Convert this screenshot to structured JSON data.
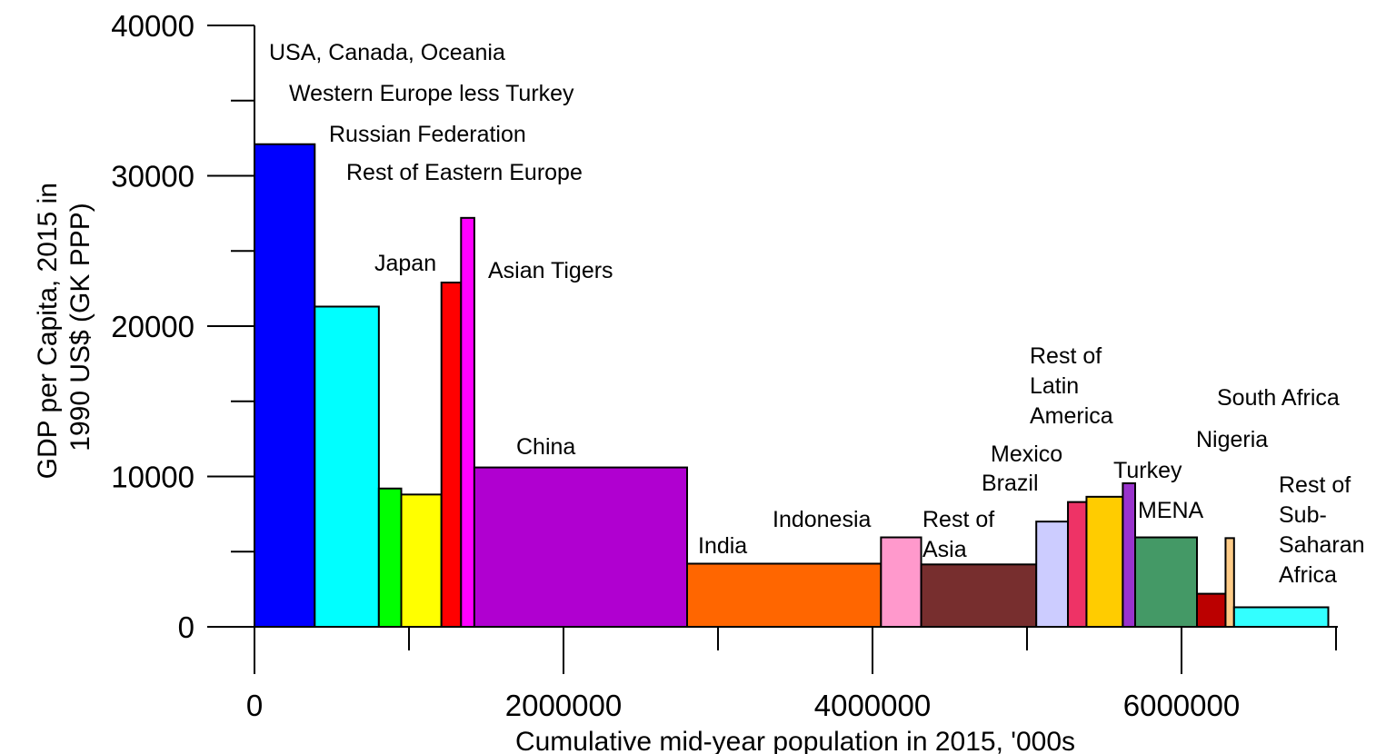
{
  "chart_data": {
    "type": "bar",
    "subtype": "variable-width",
    "xlabel": "Cumulative mid-year population in 2015, '000s",
    "ylabel_lines": [
      "GDP per Capita, 2015 in",
      "1990 US$ (GK PPP)"
    ],
    "xlim": [
      0,
      7000000
    ],
    "ylim": [
      0,
      40000
    ],
    "x_ticks": [
      0,
      2000000,
      4000000,
      6000000
    ],
    "x_tick_labels": [
      "0",
      "2000000",
      "4000000",
      "6000000"
    ],
    "x_minor_ticks": [
      1000000,
      3000000,
      5000000,
      7000000
    ],
    "y_ticks": [
      0,
      10000,
      20000,
      30000,
      40000
    ],
    "y_tick_labels": [
      "0",
      "10000",
      "20000",
      "30000",
      "40000"
    ],
    "y_minor_ticks": [
      5000,
      15000,
      25000,
      35000
    ],
    "grid": false,
    "series": [
      {
        "label": "USA, Canada, Oceania",
        "x_start": 0,
        "x_end": 390000,
        "value": 32100,
        "color": "#0000ff"
      },
      {
        "label": "Western Europe less Turkey",
        "x_start": 390000,
        "x_end": 805000,
        "value": 21300,
        "color": "#00ffff"
      },
      {
        "label": "Russian Federation",
        "x_start": 805000,
        "x_end": 950000,
        "value": 9200,
        "color": "#00ff00"
      },
      {
        "label": "Rest of Eastern Europe",
        "x_start": 950000,
        "x_end": 1210000,
        "value": 8800,
        "color": "#ffff00"
      },
      {
        "label": "Japan",
        "x_start": 1210000,
        "x_end": 1337000,
        "value": 22900,
        "color": "#ff0000"
      },
      {
        "label": "Asian Tigers",
        "x_start": 1337000,
        "x_end": 1423000,
        "value": 27200,
        "color": "#ff00ff"
      },
      {
        "label": "China",
        "x_start": 1423000,
        "x_end": 2800000,
        "value": 10600,
        "color": "#b000d0"
      },
      {
        "label": "India",
        "x_start": 2800000,
        "x_end": 4055000,
        "value": 4200,
        "color": "#ff6600"
      },
      {
        "label": "Indonesia",
        "x_start": 4055000,
        "x_end": 4315000,
        "value": 5950,
        "color": "#ff99cc"
      },
      {
        "label": "Rest of Asia",
        "x_start": 4315000,
        "x_end": 5060000,
        "value": 4150,
        "color": "#772e2e"
      },
      {
        "label": "Rest of Latin America",
        "x_start": 5060000,
        "x_end": 5265000,
        "value": 7000,
        "color": "#ccccff"
      },
      {
        "label": "Mexico",
        "x_start": 5265000,
        "x_end": 5385000,
        "value": 8300,
        "color": "#ee3366"
      },
      {
        "label": "Brazil",
        "x_start": 5385000,
        "x_end": 5620000,
        "value": 8650,
        "color": "#ffcc00"
      },
      {
        "label": "Turkey",
        "x_start": 5620000,
        "x_end": 5700000,
        "value": 9550,
        "color": "#9933cc"
      },
      {
        "label": "MENA",
        "x_start": 5700000,
        "x_end": 6100000,
        "value": 5950,
        "color": "#449966"
      },
      {
        "label": "Nigeria",
        "x_start": 6100000,
        "x_end": 6285000,
        "value": 2200,
        "color": "#bb0000"
      },
      {
        "label": "South Africa",
        "x_start": 6285000,
        "x_end": 6340000,
        "value": 5900,
        "color": "#ffcc88"
      },
      {
        "label": "Rest of Sub-Saharan Africa",
        "x_start": 6340000,
        "x_end": 6950000,
        "value": 1300,
        "color": "#33ffff"
      }
    ],
    "annotations": [
      {
        "lines": [
          "USA, Canada, Oceania"
        ]
      },
      {
        "lines": [
          "Western Europe less Turkey"
        ]
      },
      {
        "lines": [
          "Russian Federation"
        ]
      },
      {
        "lines": [
          "Rest of Eastern Europe"
        ]
      },
      {
        "lines": [
          "Japan"
        ]
      },
      {
        "lines": [
          "Asian Tigers"
        ]
      },
      {
        "lines": [
          "China"
        ]
      },
      {
        "lines": [
          "India"
        ]
      },
      {
        "lines": [
          "Indonesia"
        ]
      },
      {
        "lines": [
          "Rest of",
          "Asia"
        ]
      },
      {
        "lines": [
          "Rest of",
          "Latin",
          "America"
        ]
      },
      {
        "lines": [
          "Mexico"
        ]
      },
      {
        "lines": [
          "Brazil"
        ]
      },
      {
        "lines": [
          "Turkey"
        ]
      },
      {
        "lines": [
          "MENA"
        ]
      },
      {
        "lines": [
          "South Africa"
        ]
      },
      {
        "lines": [
          "Nigeria"
        ]
      },
      {
        "lines": [
          "Rest of",
          "Sub-",
          "Saharan",
          "Africa"
        ]
      }
    ]
  }
}
